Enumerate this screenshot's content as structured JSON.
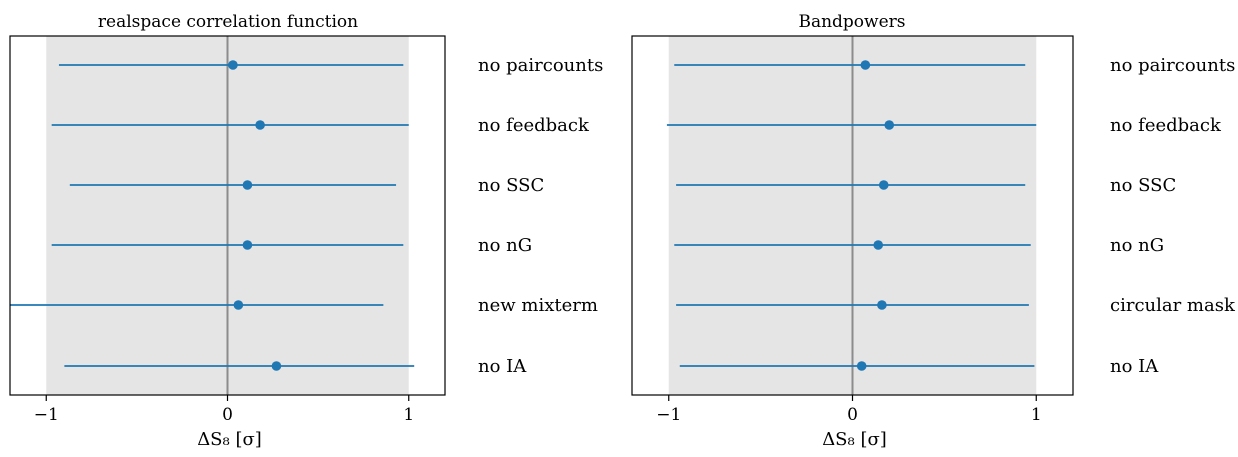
{
  "colors": {
    "series": "#1f77b4",
    "band": "#e5e5e5",
    "zero_line": "#8c8c8c",
    "frame": "#000000"
  },
  "chart_data": [
    {
      "type": "errorbar",
      "title": "realspace correlation function",
      "xlabel": "ΔS₈ [σ]",
      "xlim": [
        -1.2,
        1.2
      ],
      "xticks": [
        "−1",
        "0",
        "1"
      ],
      "shaded_band": [
        -1,
        1
      ],
      "reference_line": 0,
      "orientation": "horizontal",
      "grid": false,
      "series": [
        {
          "labels": [
            "no paircounts",
            "no feedback",
            "no SSC",
            "no nG",
            "new mixterm",
            "no IA"
          ],
          "values": [
            0.03,
            0.18,
            0.11,
            0.11,
            0.06,
            0.27
          ],
          "lower": [
            -0.93,
            -0.97,
            -0.87,
            -0.97,
            -1.2,
            -0.9
          ],
          "upper": [
            0.97,
            1.0,
            0.93,
            0.97,
            0.86,
            1.03
          ]
        }
      ]
    },
    {
      "type": "errorbar",
      "title": "Bandpowers",
      "xlabel": "ΔS₈ [σ]",
      "xlim": [
        -1.2,
        1.2
      ],
      "xticks": [
        "−1",
        "0",
        "1"
      ],
      "shaded_band": [
        -1,
        1
      ],
      "reference_line": 0,
      "orientation": "horizontal",
      "grid": false,
      "series": [
        {
          "labels": [
            "no paircounts",
            "no feedback",
            "no SSC",
            "no nG",
            "circular mask",
            "no IA"
          ],
          "values": [
            0.07,
            0.2,
            0.17,
            0.14,
            0.16,
            0.05
          ],
          "lower": [
            -0.97,
            -1.01,
            -0.96,
            -0.97,
            -0.96,
            -0.94
          ],
          "upper": [
            0.94,
            1.0,
            0.94,
            0.97,
            0.96,
            0.99
          ]
        }
      ]
    }
  ]
}
